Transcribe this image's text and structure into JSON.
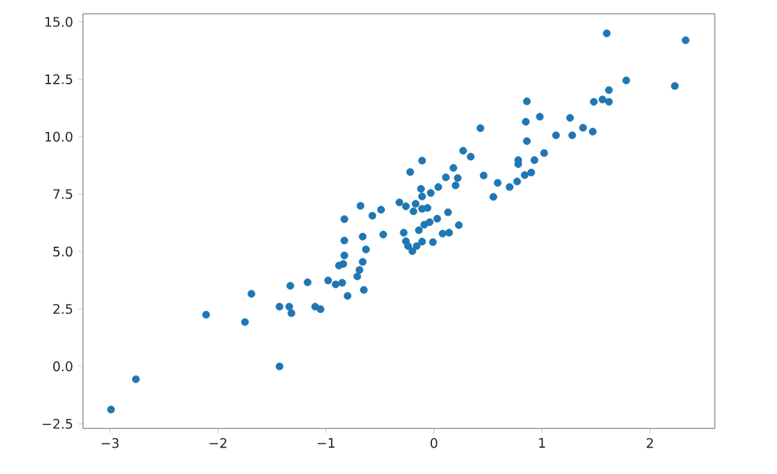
{
  "chart_data": {
    "type": "scatter",
    "marker": "circle",
    "xlim": [
      -3.25,
      2.6
    ],
    "ylim": [
      -2.7,
      15.35
    ],
    "xticks": [
      {
        "value": -3,
        "label": "−3"
      },
      {
        "value": -2,
        "label": "−2"
      },
      {
        "value": -1,
        "label": "−1"
      },
      {
        "value": 0,
        "label": "0"
      },
      {
        "value": 1,
        "label": "1"
      },
      {
        "value": 2,
        "label": "2"
      }
    ],
    "yticks": [
      {
        "value": -2.5,
        "label": "−2.5"
      },
      {
        "value": 0,
        "label": "0.0"
      },
      {
        "value": 2.5,
        "label": "2.5"
      },
      {
        "value": 5,
        "label": "5.0"
      },
      {
        "value": 7.5,
        "label": "7.5"
      },
      {
        "value": 10,
        "label": "10.0"
      },
      {
        "value": 12.5,
        "label": "12.5"
      },
      {
        "value": 15,
        "label": "15.0"
      }
    ],
    "series": [
      {
        "color": "#1f77b4",
        "x": [
          -2.99,
          -2.76,
          -2.11,
          -1.75,
          -1.69,
          -1.43,
          -1.43,
          -1.34,
          -1.32,
          -1.33,
          -1.17,
          -1.1,
          -1.05,
          -0.98,
          -0.91,
          -0.85,
          -0.8,
          -0.88,
          -0.84,
          -0.83,
          -0.83,
          -0.83,
          -0.71,
          -0.69,
          -0.66,
          -0.63,
          -0.65,
          -0.66,
          -0.68,
          -0.57,
          -0.49,
          -0.47,
          -0.32,
          -0.22,
          -0.28,
          -0.26,
          -0.24,
          -0.2,
          -0.16,
          -0.11,
          -0.26,
          -0.19,
          -0.17,
          -0.11,
          -0.06,
          -0.14,
          -0.09,
          -0.04,
          0.03,
          -0.01,
          -0.12,
          -0.11,
          -0.03,
          0.04,
          -0.11,
          0.08,
          0.14,
          0.13,
          0.23,
          0.11,
          0.18,
          0.22,
          0.2,
          0.27,
          0.34,
          0.43,
          0.46,
          0.55,
          0.59,
          0.7,
          0.77,
          0.78,
          0.78,
          0.84,
          0.9,
          0.93,
          0.85,
          0.86,
          0.86,
          0.98,
          1.02,
          1.13,
          1.26,
          1.28,
          1.38,
          1.47,
          1.48,
          1.56,
          1.62,
          1.62,
          1.6,
          1.78,
          2.23,
          2.33
        ],
        "values": [
          -1.88,
          -0.56,
          2.25,
          1.93,
          3.16,
          0.0,
          2.6,
          2.6,
          2.32,
          3.51,
          3.66,
          2.6,
          2.49,
          3.74,
          3.57,
          3.64,
          3.07,
          4.39,
          4.46,
          4.83,
          5.48,
          6.41,
          3.92,
          4.2,
          4.55,
          5.09,
          3.33,
          5.65,
          6.99,
          6.56,
          6.82,
          5.74,
          7.14,
          8.46,
          5.82,
          5.45,
          5.24,
          5.02,
          5.24,
          5.43,
          6.97,
          6.75,
          7.08,
          6.86,
          6.9,
          5.93,
          6.17,
          6.28,
          6.43,
          5.41,
          7.73,
          7.4,
          7.55,
          7.81,
          8.96,
          5.78,
          5.82,
          6.71,
          6.15,
          8.23,
          8.64,
          8.2,
          7.88,
          9.39,
          9.13,
          10.37,
          8.31,
          7.38,
          7.99,
          7.81,
          8.05,
          8.98,
          8.81,
          8.33,
          8.44,
          8.98,
          10.65,
          11.54,
          9.81,
          10.87,
          9.29,
          10.06,
          10.82,
          10.06,
          10.39,
          10.22,
          11.52,
          11.62,
          12.03,
          11.52,
          14.5,
          12.45,
          12.21,
          14.2
        ]
      }
    ]
  }
}
